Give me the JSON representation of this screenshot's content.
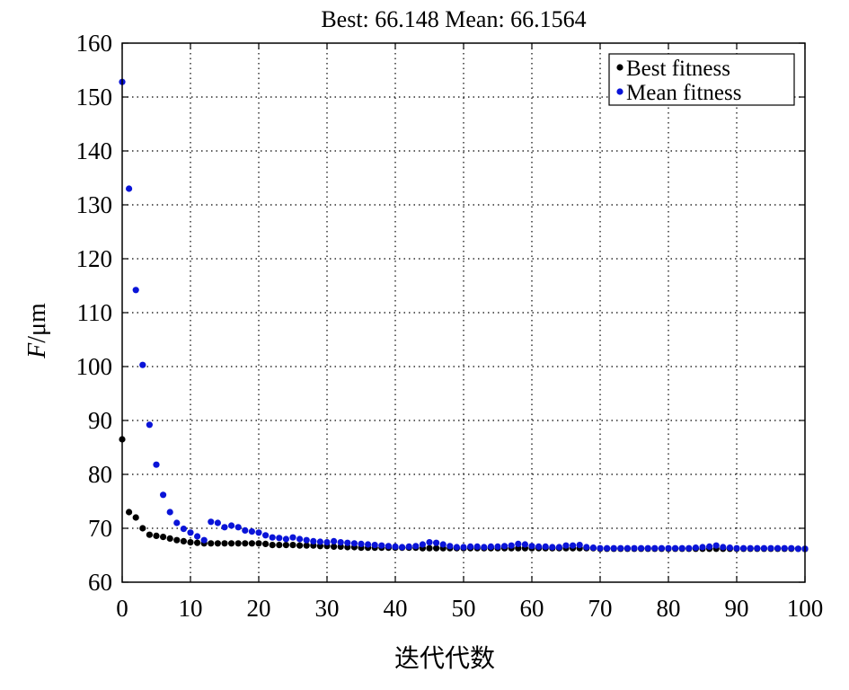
{
  "chart_data": {
    "type": "scatter",
    "title": "Best: 66.148  Mean: 66.1564",
    "xlabel": "迭代代数",
    "ylabel_italic": "F",
    "ylabel_unit": "/μm",
    "xlim": [
      0,
      100
    ],
    "ylim": [
      60,
      160
    ],
    "xticks": [
      0,
      10,
      20,
      30,
      40,
      50,
      60,
      70,
      80,
      90,
      100
    ],
    "yticks": [
      60,
      70,
      80,
      90,
      100,
      110,
      120,
      130,
      140,
      150,
      160
    ],
    "grid": true,
    "grid_style": "dotted",
    "legend_position": "top-right",
    "colors": {
      "best": "#000000",
      "mean": "#0a14d8"
    },
    "series": [
      {
        "name": "Best fitness",
        "color": "#000000",
        "x": [
          0,
          1,
          2,
          3,
          4,
          5,
          6,
          7,
          8,
          9,
          10,
          11,
          12,
          13,
          14,
          15,
          16,
          17,
          18,
          19,
          20,
          21,
          22,
          23,
          24,
          25,
          26,
          27,
          28,
          29,
          30,
          31,
          32,
          33,
          34,
          35,
          36,
          37,
          38,
          39,
          40,
          41,
          42,
          43,
          44,
          45,
          46,
          47,
          48,
          49,
          50,
          51,
          52,
          53,
          54,
          55,
          56,
          57,
          58,
          59,
          60,
          61,
          62,
          63,
          64,
          65,
          66,
          67,
          68,
          69,
          70,
          71,
          72,
          73,
          74,
          75,
          76,
          77,
          78,
          79,
          80,
          81,
          82,
          83,
          84,
          85,
          86,
          87,
          88,
          89,
          90,
          91,
          92,
          93,
          94,
          95,
          96,
          97,
          98,
          99,
          100
        ],
        "values": [
          86.5,
          73.0,
          72.0,
          70.0,
          68.8,
          68.6,
          68.4,
          68.1,
          67.8,
          67.6,
          67.4,
          67.3,
          67.2,
          67.2,
          67.2,
          67.2,
          67.2,
          67.2,
          67.2,
          67.2,
          67.2,
          67.1,
          66.9,
          66.9,
          66.9,
          66.9,
          66.8,
          66.8,
          66.8,
          66.7,
          66.7,
          66.6,
          66.6,
          66.5,
          66.5,
          66.4,
          66.4,
          66.4,
          66.4,
          66.4,
          66.4,
          66.4,
          66.4,
          66.4,
          66.3,
          66.3,
          66.3,
          66.3,
          66.3,
          66.3,
          66.3,
          66.3,
          66.3,
          66.3,
          66.3,
          66.3,
          66.3,
          66.3,
          66.3,
          66.3,
          66.3,
          66.3,
          66.3,
          66.3,
          66.3,
          66.3,
          66.3,
          66.3,
          66.3,
          66.3,
          66.2,
          66.2,
          66.2,
          66.2,
          66.2,
          66.2,
          66.2,
          66.2,
          66.2,
          66.2,
          66.2,
          66.2,
          66.2,
          66.2,
          66.2,
          66.2,
          66.2,
          66.2,
          66.2,
          66.2,
          66.2,
          66.2,
          66.2,
          66.2,
          66.2,
          66.2,
          66.2,
          66.2,
          66.2,
          66.2,
          66.15
        ]
      },
      {
        "name": "Mean fitness",
        "color": "#0a14d8",
        "x": [
          0,
          1,
          2,
          3,
          4,
          5,
          6,
          7,
          8,
          9,
          10,
          11,
          12,
          13,
          14,
          15,
          16,
          17,
          18,
          19,
          20,
          21,
          22,
          23,
          24,
          25,
          26,
          27,
          28,
          29,
          30,
          31,
          32,
          33,
          34,
          35,
          36,
          37,
          38,
          39,
          40,
          41,
          42,
          43,
          44,
          45,
          46,
          47,
          48,
          49,
          50,
          51,
          52,
          53,
          54,
          55,
          56,
          57,
          58,
          59,
          60,
          61,
          62,
          63,
          64,
          65,
          66,
          67,
          68,
          69,
          70,
          71,
          72,
          73,
          74,
          75,
          76,
          77,
          78,
          79,
          80,
          81,
          82,
          83,
          84,
          85,
          86,
          87,
          88,
          89,
          90,
          91,
          92,
          93,
          94,
          95,
          96,
          97,
          98,
          99,
          100
        ],
        "values": [
          152.8,
          133.0,
          114.2,
          100.3,
          89.2,
          81.8,
          76.2,
          73.0,
          71.0,
          69.9,
          69.2,
          68.5,
          67.8,
          71.2,
          71.0,
          70.2,
          70.5,
          70.2,
          69.6,
          69.4,
          69.2,
          68.7,
          68.3,
          68.2,
          68.0,
          68.3,
          68.0,
          67.8,
          67.6,
          67.5,
          67.4,
          67.6,
          67.4,
          67.3,
          67.2,
          67.1,
          67.0,
          66.9,
          66.8,
          66.7,
          66.6,
          66.5,
          66.6,
          66.7,
          67.0,
          67.4,
          67.3,
          67.0,
          66.7,
          66.5,
          66.5,
          66.6,
          66.6,
          66.5,
          66.6,
          66.6,
          66.7,
          66.8,
          67.1,
          67.0,
          66.7,
          66.6,
          66.6,
          66.5,
          66.5,
          66.8,
          66.8,
          66.9,
          66.5,
          66.4,
          66.3,
          66.3,
          66.3,
          66.3,
          66.3,
          66.3,
          66.3,
          66.3,
          66.3,
          66.3,
          66.3,
          66.3,
          66.3,
          66.3,
          66.4,
          66.5,
          66.6,
          66.8,
          66.5,
          66.4,
          66.3,
          66.3,
          66.3,
          66.3,
          66.3,
          66.3,
          66.3,
          66.3,
          66.3,
          66.2,
          66.2
        ]
      }
    ]
  }
}
